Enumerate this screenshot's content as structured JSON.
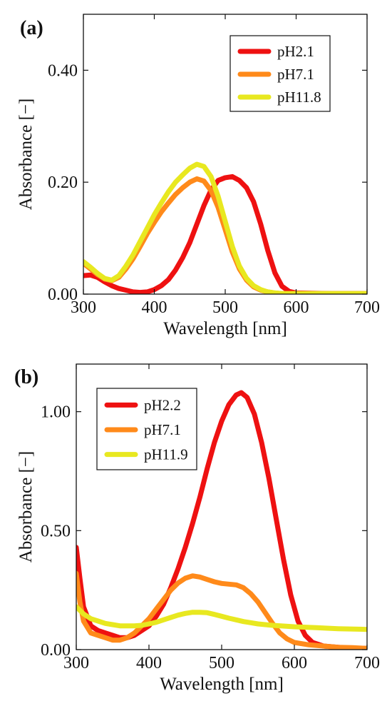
{
  "chart_data": [
    {
      "panel_label": "(a)",
      "type": "line",
      "xlabel": "Wavelength [nm]",
      "ylabel": "Absorbance [−]",
      "xlim": [
        300,
        700
      ],
      "ylim": [
        0,
        0.5
      ],
      "xticks": [
        300,
        400,
        500,
        600,
        700
      ],
      "xtick_labels": [
        "300",
        "400",
        "500",
        "600",
        "700"
      ],
      "yticks": [
        0,
        0.2,
        0.4
      ],
      "ytick_labels": [
        "0.00",
        "0.20",
        "0.40"
      ],
      "grid": false,
      "legend_position": "top-right",
      "series": [
        {
          "name": "pH2.1",
          "color": "#ee1111",
          "x": [
            300,
            310,
            320,
            330,
            340,
            350,
            360,
            370,
            380,
            390,
            400,
            410,
            420,
            430,
            440,
            450,
            460,
            470,
            480,
            490,
            500,
            510,
            520,
            530,
            540,
            550,
            560,
            570,
            580,
            590,
            600,
            650,
            700
          ],
          "y": [
            0.033,
            0.034,
            0.03,
            0.022,
            0.015,
            0.01,
            0.007,
            0.004,
            0.003,
            0.004,
            0.008,
            0.015,
            0.026,
            0.043,
            0.065,
            0.092,
            0.125,
            0.158,
            0.186,
            0.203,
            0.208,
            0.21,
            0.203,
            0.19,
            0.165,
            0.125,
            0.078,
            0.038,
            0.014,
            0.005,
            0.002,
            0.001,
            0.001
          ]
        },
        {
          "name": "pH7.1",
          "color": "#ff8a1a",
          "x": [
            300,
            310,
            320,
            330,
            340,
            350,
            360,
            370,
            380,
            390,
            400,
            410,
            420,
            430,
            440,
            450,
            460,
            470,
            480,
            490,
            500,
            510,
            520,
            530,
            540,
            550,
            560,
            570,
            580,
            600,
            650,
            700
          ],
          "y": [
            0.055,
            0.045,
            0.035,
            0.027,
            0.024,
            0.03,
            0.045,
            0.063,
            0.085,
            0.108,
            0.128,
            0.147,
            0.163,
            0.178,
            0.19,
            0.2,
            0.206,
            0.202,
            0.185,
            0.155,
            0.115,
            0.075,
            0.045,
            0.025,
            0.013,
            0.007,
            0.004,
            0.002,
            0.001,
            0.001,
            0.001,
            0.001
          ]
        },
        {
          "name": "pH11.8",
          "color": "#e8e820",
          "x": [
            300,
            310,
            320,
            330,
            340,
            350,
            360,
            370,
            380,
            390,
            400,
            410,
            420,
            430,
            440,
            450,
            460,
            470,
            480,
            490,
            500,
            510,
            520,
            530,
            540,
            550,
            560,
            570,
            580,
            600,
            650,
            700
          ],
          "y": [
            0.058,
            0.048,
            0.037,
            0.028,
            0.025,
            0.033,
            0.05,
            0.07,
            0.094,
            0.118,
            0.142,
            0.163,
            0.183,
            0.2,
            0.213,
            0.225,
            0.232,
            0.228,
            0.21,
            0.175,
            0.13,
            0.085,
            0.05,
            0.028,
            0.015,
            0.008,
            0.004,
            0.002,
            0.001,
            0.001,
            0.001,
            0.001
          ]
        }
      ]
    },
    {
      "panel_label": "(b)",
      "type": "line",
      "xlabel": "Wavelength [nm]",
      "ylabel": "Absorbance [−]",
      "xlim": [
        300,
        700
      ],
      "ylim": [
        0,
        1.2
      ],
      "xticks": [
        300,
        400,
        500,
        600,
        700
      ],
      "xtick_labels": [
        "300",
        "400",
        "500",
        "600",
        "700"
      ],
      "yticks": [
        0,
        0.5,
        1.0
      ],
      "ytick_labels": [
        "0.00",
        "0.50",
        "1.00"
      ],
      "grid": false,
      "legend_position": "top-left",
      "series": [
        {
          "name": "pH2.2",
          "color": "#ee1111",
          "x": [
            300,
            305,
            310,
            320,
            330,
            340,
            350,
            360,
            370,
            380,
            390,
            400,
            410,
            420,
            430,
            440,
            450,
            460,
            470,
            480,
            490,
            500,
            510,
            520,
            527,
            535,
            545,
            555,
            565,
            575,
            585,
            595,
            605,
            615,
            625,
            640,
            660,
            680,
            700
          ],
          "y": [
            0.43,
            0.3,
            0.18,
            0.1,
            0.08,
            0.07,
            0.06,
            0.05,
            0.05,
            0.06,
            0.08,
            0.1,
            0.14,
            0.19,
            0.26,
            0.34,
            0.43,
            0.53,
            0.64,
            0.76,
            0.87,
            0.96,
            1.03,
            1.07,
            1.08,
            1.06,
            0.99,
            0.87,
            0.72,
            0.55,
            0.38,
            0.23,
            0.12,
            0.06,
            0.03,
            0.015,
            0.01,
            0.005,
            0.005
          ]
        },
        {
          "name": "pH7.1",
          "color": "#ff8a1a",
          "x": [
            300,
            305,
            310,
            320,
            330,
            340,
            350,
            360,
            370,
            380,
            390,
            400,
            410,
            420,
            430,
            440,
            450,
            460,
            470,
            480,
            490,
            500,
            510,
            520,
            530,
            540,
            550,
            560,
            570,
            580,
            590,
            600,
            620,
            640,
            660,
            680,
            700
          ],
          "y": [
            0.32,
            0.2,
            0.12,
            0.07,
            0.06,
            0.05,
            0.04,
            0.04,
            0.05,
            0.07,
            0.1,
            0.13,
            0.17,
            0.21,
            0.25,
            0.28,
            0.3,
            0.31,
            0.305,
            0.295,
            0.285,
            0.278,
            0.275,
            0.272,
            0.26,
            0.235,
            0.2,
            0.155,
            0.11,
            0.07,
            0.045,
            0.03,
            0.02,
            0.015,
            0.01,
            0.008,
            0.005
          ]
        },
        {
          "name": "pH11.9",
          "color": "#e8e820",
          "x": [
            300,
            310,
            320,
            330,
            340,
            350,
            360,
            370,
            380,
            390,
            400,
            410,
            420,
            430,
            440,
            450,
            460,
            470,
            480,
            490,
            500,
            510,
            520,
            530,
            540,
            550,
            570,
            600,
            630,
            660,
            700
          ],
          "y": [
            0.18,
            0.15,
            0.13,
            0.12,
            0.11,
            0.105,
            0.1,
            0.1,
            0.1,
            0.102,
            0.108,
            0.115,
            0.125,
            0.135,
            0.145,
            0.152,
            0.157,
            0.157,
            0.155,
            0.148,
            0.14,
            0.132,
            0.125,
            0.118,
            0.113,
            0.108,
            0.102,
            0.096,
            0.092,
            0.088,
            0.085
          ]
        }
      ]
    }
  ]
}
